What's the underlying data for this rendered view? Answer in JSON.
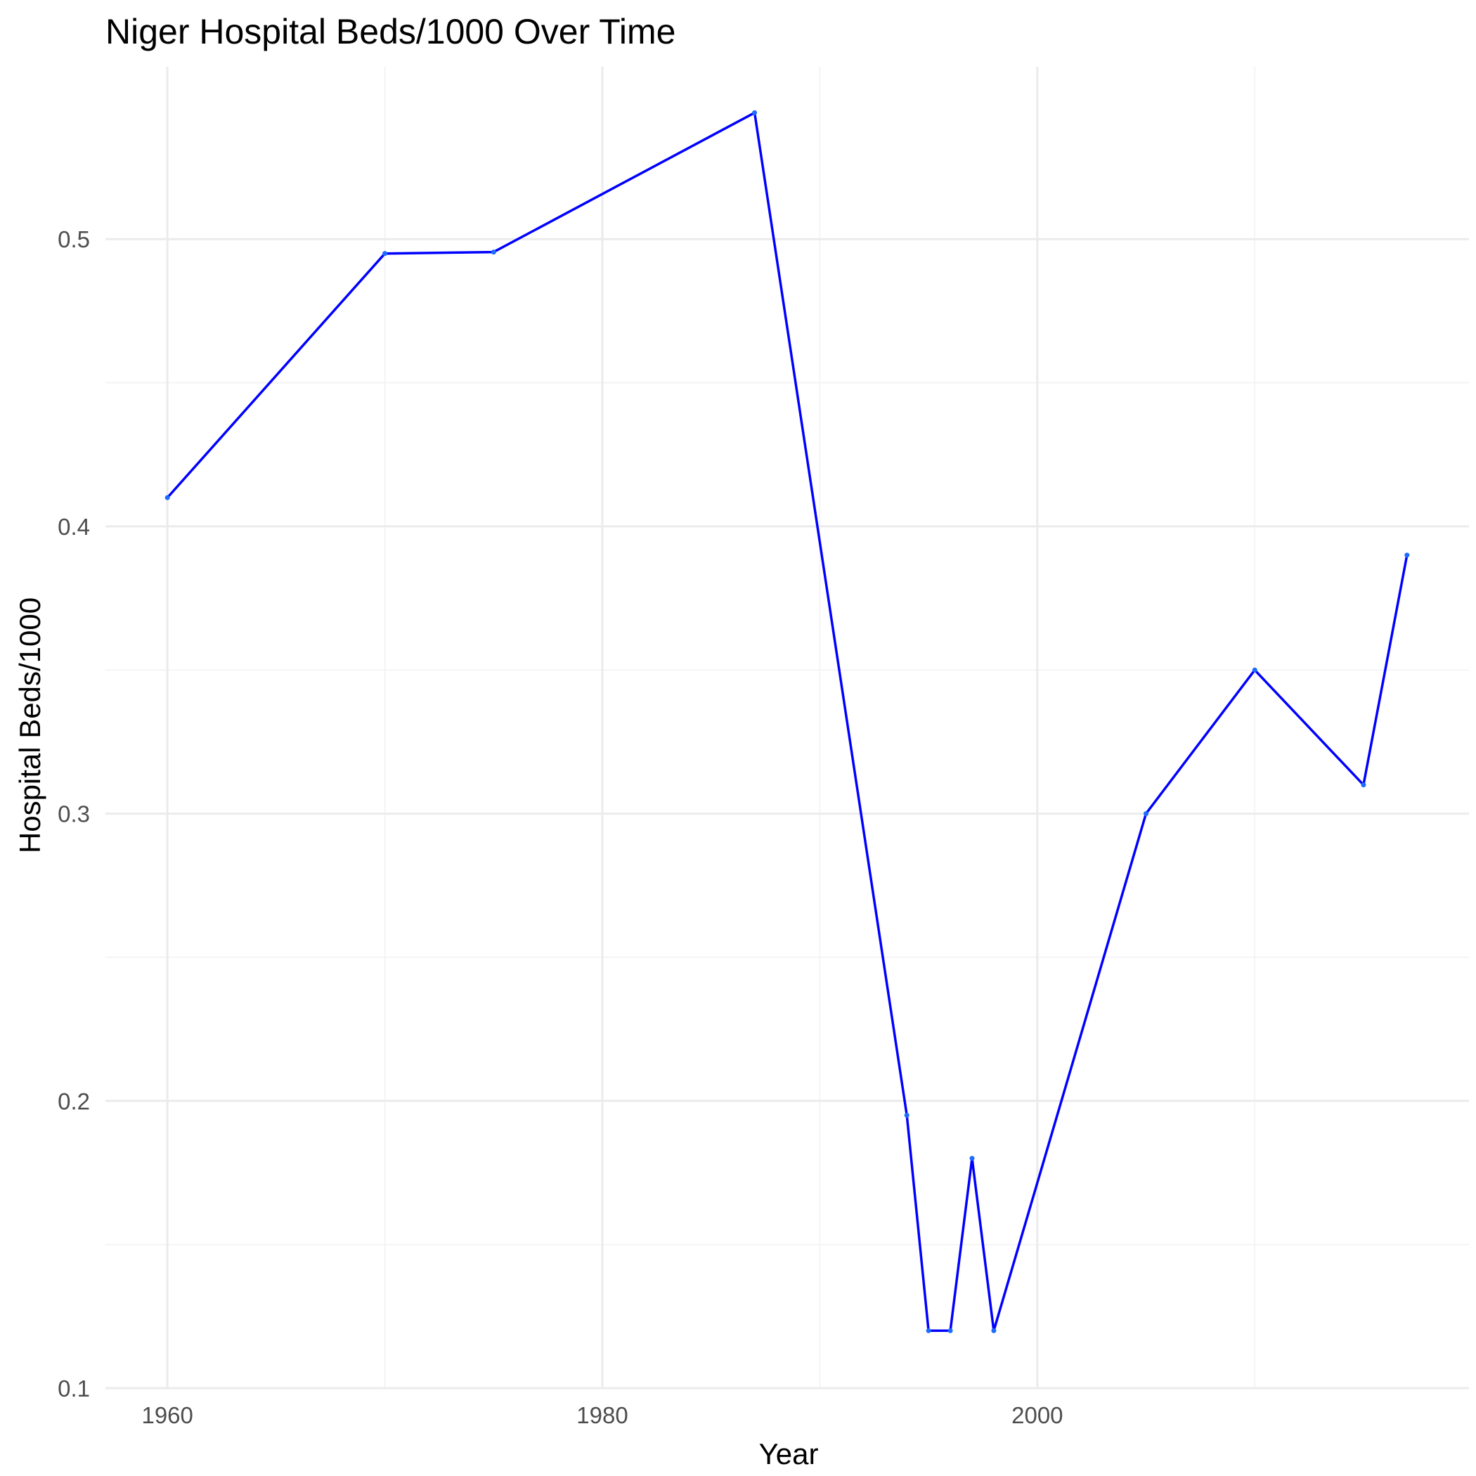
{
  "chart_data": {
    "type": "line",
    "title": "Niger Hospital Beds/1000 Over Time",
    "xlabel": "Year",
    "ylabel": "Hospital Beds/1000",
    "xlim": [
      1957.15,
      2019.85
    ],
    "ylim": [
      0.1,
      0.56
    ],
    "x_ticks": [
      1960,
      1980,
      2000
    ],
    "x_tick_labels": [
      "1960",
      "1980",
      "2000"
    ],
    "x_minor_ticks": [
      1970,
      1990,
      2010
    ],
    "y_ticks": [
      0.1,
      0.2,
      0.3,
      0.4,
      0.5
    ],
    "y_tick_labels": [
      "0.1",
      "0.2",
      "0.3",
      "0.4",
      "0.5"
    ],
    "y_minor_ticks": [
      0.15,
      0.25,
      0.35,
      0.45
    ],
    "grid": true,
    "legend": "none",
    "colors": {
      "line": "#0000ff",
      "point": "#1e6bff",
      "grid": "#ebebeb"
    },
    "series": [
      {
        "x": [
          1960,
          1970,
          1975,
          1987,
          1994,
          1995,
          1996,
          1997,
          1998,
          2005,
          2010,
          2015,
          2017
        ],
        "values": [
          0.41,
          0.495,
          0.4955,
          0.544,
          0.195,
          0.12,
          0.12,
          0.18,
          0.12,
          0.3,
          0.35,
          0.31,
          0.39
        ]
      }
    ]
  }
}
